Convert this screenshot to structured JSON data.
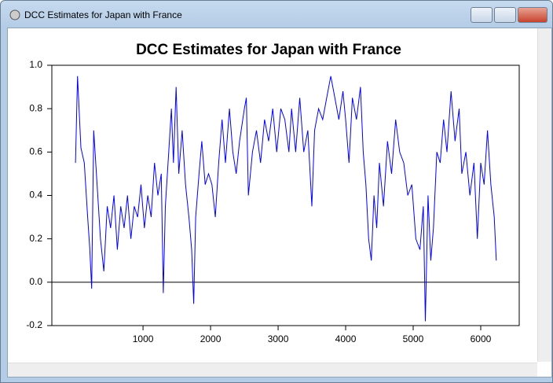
{
  "window": {
    "title": "DCC Estimates for Japan with France"
  },
  "chart_data": {
    "type": "line",
    "title": "DCC Estimates for Japan with France",
    "color": "#0000ff",
    "x": [
      0,
      30,
      80,
      130,
      180,
      210,
      240,
      270,
      320,
      370,
      420,
      470,
      520,
      570,
      620,
      670,
      720,
      770,
      820,
      870,
      920,
      970,
      1020,
      1070,
      1120,
      1170,
      1220,
      1270,
      1300,
      1330,
      1380,
      1420,
      1450,
      1490,
      1530,
      1580,
      1630,
      1680,
      1720,
      1750,
      1780,
      1830,
      1870,
      1920,
      1970,
      2020,
      2070,
      2120,
      2170,
      2220,
      2280,
      2330,
      2380,
      2430,
      2500,
      2530,
      2560,
      2620,
      2680,
      2740,
      2800,
      2860,
      2920,
      2980,
      3040,
      3100,
      3160,
      3200,
      3260,
      3320,
      3380,
      3440,
      3500,
      3540,
      3600,
      3660,
      3720,
      3780,
      3840,
      3900,
      3960,
      4000,
      4050,
      4100,
      4160,
      4220,
      4260,
      4300,
      4340,
      4380,
      4420,
      4460,
      4500,
      4560,
      4620,
      4680,
      4740,
      4800,
      4860,
      4920,
      4980,
      5040,
      5100,
      5150,
      5180,
      5220,
      5260,
      5300,
      5350,
      5400,
      5450,
      5500,
      5560,
      5620,
      5680,
      5720,
      5780,
      5840,
      5900,
      5950,
      6000,
      6050,
      6100,
      6150,
      6200,
      6230
    ],
    "values": [
      0.55,
      0.95,
      0.62,
      0.55,
      0.3,
      0.16,
      -0.03,
      0.7,
      0.45,
      0.2,
      0.05,
      0.35,
      0.25,
      0.4,
      0.15,
      0.35,
      0.25,
      0.4,
      0.2,
      0.35,
      0.3,
      0.45,
      0.25,
      0.4,
      0.3,
      0.55,
      0.4,
      0.5,
      -0.05,
      0.35,
      0.6,
      0.8,
      0.55,
      0.9,
      0.5,
      0.7,
      0.45,
      0.3,
      0.15,
      -0.1,
      0.3,
      0.5,
      0.65,
      0.45,
      0.5,
      0.45,
      0.3,
      0.55,
      0.75,
      0.55,
      0.8,
      0.6,
      0.5,
      0.65,
      0.8,
      0.85,
      0.4,
      0.6,
      0.7,
      0.55,
      0.75,
      0.65,
      0.8,
      0.6,
      0.8,
      0.75,
      0.6,
      0.8,
      0.6,
      0.85,
      0.6,
      0.7,
      0.35,
      0.7,
      0.8,
      0.75,
      0.85,
      0.95,
      0.85,
      0.75,
      0.88,
      0.75,
      0.55,
      0.85,
      0.75,
      0.9,
      0.6,
      0.45,
      0.2,
      0.1,
      0.4,
      0.25,
      0.55,
      0.35,
      0.65,
      0.5,
      0.75,
      0.6,
      0.55,
      0.4,
      0.45,
      0.2,
      0.15,
      0.35,
      -0.18,
      0.4,
      0.1,
      0.25,
      0.6,
      0.55,
      0.75,
      0.6,
      0.88,
      0.65,
      0.8,
      0.5,
      0.6,
      0.4,
      0.55,
      0.2,
      0.55,
      0.45,
      0.7,
      0.45,
      0.3,
      0.1
    ],
    "xlim": [
      -350,
      6570
    ],
    "xticks": [
      1000,
      2000,
      3000,
      4000,
      5000,
      6000
    ],
    "ylim": [
      -0.2,
      1.0
    ],
    "yticks": [
      {
        "value": 1.0,
        "label": "1.0"
      },
      0.8,
      0.6,
      0.4,
      0.2,
      {
        "value": 0,
        "label": "0.0"
      },
      -0.2
    ]
  }
}
